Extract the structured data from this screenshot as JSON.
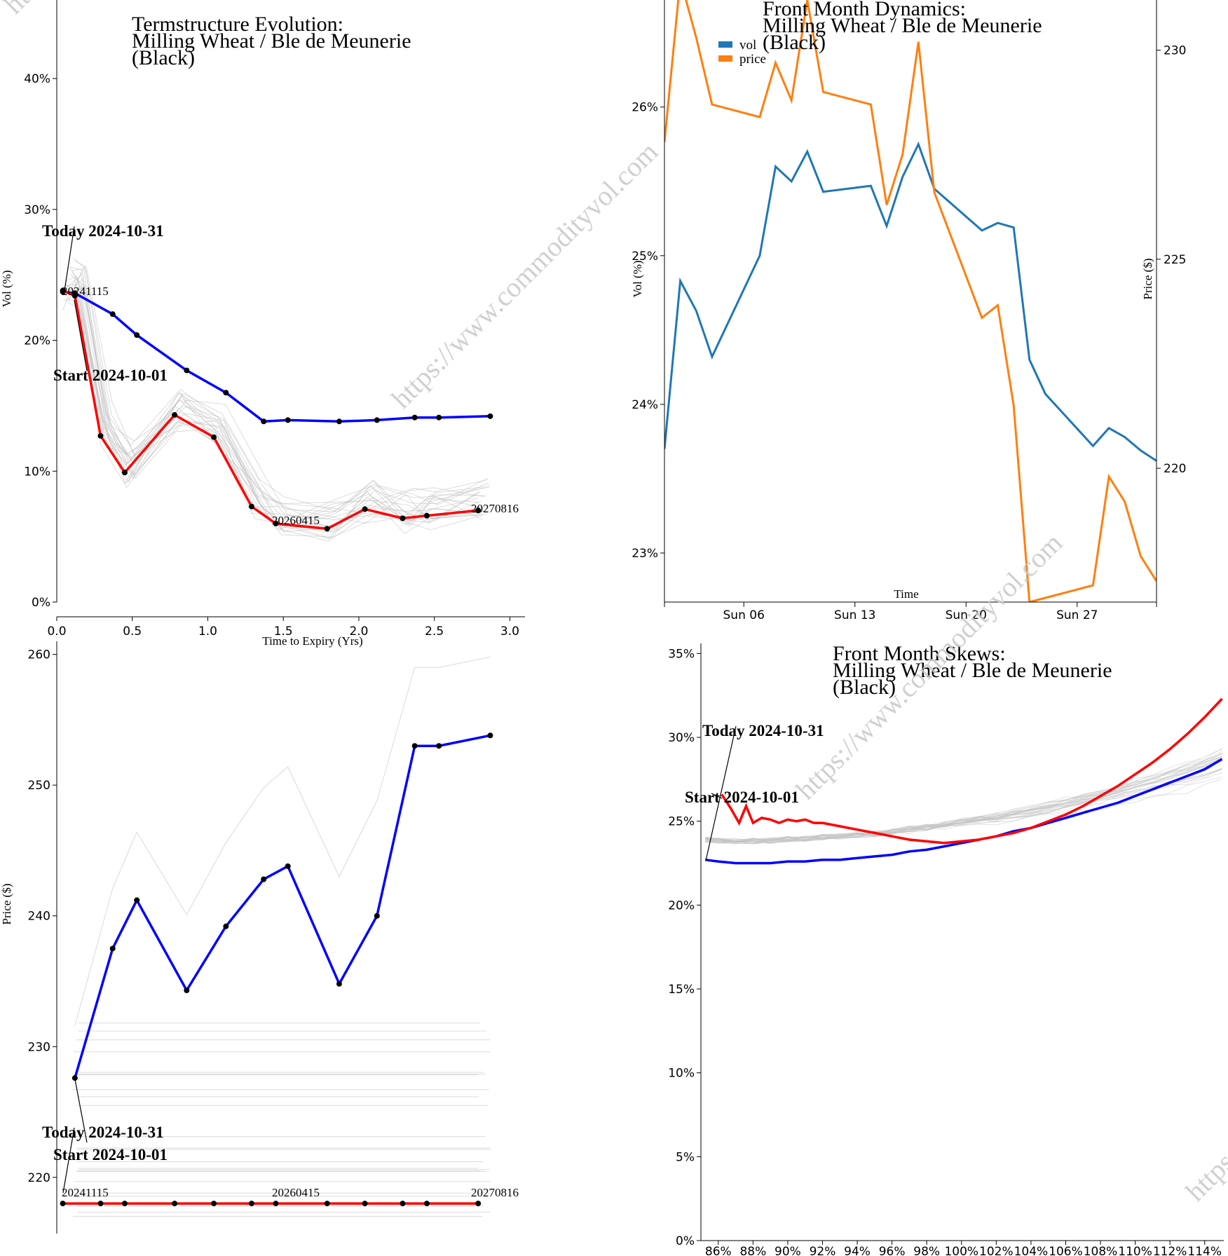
{
  "watermark": "https://www.commodityvol.com",
  "colors": {
    "today": "#0000ff",
    "start": "#ff0000",
    "history": "#c0c0c0",
    "vol": "#1f77b4",
    "price": "#ff7f0e"
  },
  "chart_data": [
    {
      "id": "term_vol",
      "type": "line",
      "title": [
        "Termstructure Evolution:",
        "Milling Wheat / Ble de Meunerie",
        "(Black)"
      ],
      "xlabel": "Time to Expiry (Yrs)",
      "ylabel": "Vol (%)",
      "xlim": [
        0,
        3.1
      ],
      "ylim": [
        0,
        46
      ],
      "xticks": [
        0,
        0.5,
        1,
        1.5,
        2,
        2.5,
        3
      ],
      "xtick_labels": [
        "0.0",
        "0.5",
        "1.0",
        "1.5",
        "2.0",
        "2.5",
        "3.0"
      ],
      "yticks": [
        0,
        10,
        20,
        30,
        40
      ],
      "ytick_labels": [
        "0%",
        "10%",
        "20%",
        "30%",
        "40%"
      ],
      "annotations": [
        "Today 2024-10-31",
        "Start 2024-10-01"
      ],
      "expiry_labels": [
        {
          "text": "20241115",
          "x": 0.04,
          "y": 23.8
        },
        {
          "text": "20260415",
          "x": 1.47,
          "y": 6.0
        },
        {
          "text": "20270816",
          "x": 2.8,
          "y": 7.0
        }
      ],
      "series": [
        {
          "name": "today",
          "x": [
            0.04,
            0.12,
            0.37,
            0.53,
            0.86,
            1.12,
            1.37,
            1.53,
            1.87,
            2.12,
            2.37,
            2.53,
            2.87
          ],
          "y": [
            23.7,
            23.6,
            22.0,
            20.4,
            17.7,
            16.0,
            13.8,
            13.9,
            13.8,
            13.9,
            14.1,
            14.1,
            14.2
          ]
        },
        {
          "name": "start",
          "x": [
            0.04,
            0.12,
            0.29,
            0.45,
            0.78,
            1.04,
            1.29,
            1.45,
            1.79,
            2.04,
            2.29,
            2.45,
            2.79
          ],
          "y": [
            23.8,
            23.4,
            12.7,
            9.9,
            14.3,
            12.6,
            7.3,
            6.0,
            5.6,
            7.1,
            6.4,
            6.6,
            7.0
          ]
        }
      ]
    },
    {
      "id": "front_dynamics",
      "type": "line",
      "title": [
        "Front Month Dynamics:",
        "Milling Wheat / Ble de Meunerie",
        "(Black)"
      ],
      "xlabel": "Time",
      "ylabel": "Vol (%)",
      "ylabel_right": "Price ($)",
      "legend": [
        "vol",
        "price"
      ],
      "legend_position": "top-left",
      "xlim": [
        1,
        32
      ],
      "xticks": [
        6,
        13,
        20,
        27
      ],
      "xtick_labels": [
        "Sun 06",
        "Sun 13",
        "Sun 20",
        "Sun 27"
      ],
      "ylim": [
        22.67,
        26.72
      ],
      "yticks": [
        23,
        24,
        25,
        26
      ],
      "ytick_labels": [
        "23%",
        "24%",
        "25%",
        "26%"
      ],
      "ylim_right": [
        216.8,
        231.2
      ],
      "yticks_right": [
        220,
        225,
        230
      ],
      "ytick_labels_right": [
        "220",
        "225",
        "230"
      ],
      "series": [
        {
          "name": "vol",
          "x": [
            1,
            2,
            3,
            4,
            7,
            8,
            9,
            10,
            11,
            14,
            15,
            16,
            17,
            18,
            21,
            22,
            23,
            24,
            25,
            28,
            29,
            30,
            31,
            32
          ],
          "y": [
            23.7,
            24.83,
            24.63,
            24.32,
            25.0,
            25.6,
            25.5,
            25.7,
            25.43,
            25.47,
            25.2,
            25.53,
            25.75,
            25.45,
            25.17,
            25.22,
            25.19,
            24.3,
            24.07,
            23.72,
            23.84,
            23.78,
            23.69,
            23.62
          ]
        },
        {
          "name": "price",
          "x": [
            1,
            2,
            3,
            4,
            7,
            8,
            9,
            10,
            11,
            14,
            15,
            16,
            17,
            18,
            21,
            22,
            23,
            24,
            25,
            28,
            29,
            30,
            31,
            32
          ],
          "y": [
            227.8,
            231.7,
            230.3,
            228.7,
            228.4,
            229.7,
            228.8,
            231.2,
            229.0,
            228.7,
            226.3,
            227.5,
            230.2,
            226.6,
            223.6,
            223.9,
            221.5,
            216.8,
            216.9,
            217.2,
            219.8,
            219.2,
            217.9,
            217.3
          ]
        }
      ]
    },
    {
      "id": "term_price",
      "type": "line",
      "ylabel": "Price ($)",
      "xlim": [
        0,
        3.1
      ],
      "ylim": [
        215.7,
        261.0
      ],
      "yticks": [
        220,
        230,
        240,
        250,
        260
      ],
      "ytick_labels": [
        "220",
        "230",
        "240",
        "250",
        "260"
      ],
      "annotations": [
        "Today 2024-10-31",
        "Start 2024-10-01"
      ],
      "expiry_labels": [
        {
          "text": "20241115",
          "x": 0.04,
          "y": 218.0
        },
        {
          "text": "20260415",
          "x": 1.45,
          "y": 218.0
        },
        {
          "text": "20270816",
          "x": 2.79,
          "y": 218.0
        }
      ],
      "series": [
        {
          "name": "today",
          "x": [
            0.12,
            0.37,
            0.53,
            0.86,
            1.12,
            1.37,
            1.53,
            1.87,
            2.12,
            2.37,
            2.53,
            2.87
          ],
          "y": [
            227.6,
            237.5,
            241.2,
            234.3,
            239.2,
            242.8,
            243.8,
            234.8,
            240.0,
            253.0,
            253.0,
            253.8
          ]
        },
        {
          "name": "start",
          "x": [
            0.04,
            0.29,
            0.45,
            0.78,
            1.04,
            1.29,
            1.45,
            1.79,
            2.04,
            2.29,
            2.45,
            2.79
          ],
          "y": [
            218.0,
            218.0,
            218.0,
            218.0,
            218.0,
            218.0,
            218.0,
            218.0,
            218.0,
            218.0,
            218.0,
            218.0
          ]
        }
      ]
    },
    {
      "id": "front_skews",
      "type": "line",
      "title": [
        "Front Month Skews:",
        "Milling Wheat / Ble de Meunerie",
        "(Black)"
      ],
      "xlim": [
        85,
        115.1
      ],
      "xticks": [
        86,
        88,
        90,
        92,
        94,
        96,
        98,
        100,
        102,
        104,
        106,
        108,
        110,
        112,
        114
      ],
      "xtick_labels": [
        "86%",
        "88%",
        "90%",
        "92%",
        "94%",
        "96%",
        "98%",
        "100%",
        "102%",
        "104%",
        "106%",
        "108%",
        "110%",
        "112%",
        "114%"
      ],
      "ylim": [
        0,
        35.6
      ],
      "yticks": [
        0,
        5,
        10,
        15,
        20,
        25,
        30,
        35
      ],
      "ytick_labels": [
        "0%",
        "5%",
        "10%",
        "15%",
        "20%",
        "25%",
        "30%",
        "35%"
      ],
      "annotations": [
        "Today 2024-10-31",
        "Start 2024-10-01"
      ],
      "series": [
        {
          "name": "today",
          "x": [
            85.25,
            86,
            87,
            88,
            89,
            90,
            91,
            92,
            93,
            94,
            95,
            96,
            97,
            98,
            99,
            100,
            101,
            102,
            103,
            104,
            105,
            106,
            107,
            108,
            109,
            110,
            111,
            112,
            113,
            114,
            115
          ],
          "y": [
            22.7,
            22.6,
            22.5,
            22.5,
            22.5,
            22.6,
            22.6,
            22.7,
            22.7,
            22.8,
            22.9,
            23.0,
            23.2,
            23.3,
            23.5,
            23.7,
            23.9,
            24.1,
            24.4,
            24.6,
            24.9,
            25.2,
            25.5,
            25.8,
            26.1,
            26.5,
            26.9,
            27.3,
            27.7,
            28.1,
            28.7
          ]
        },
        {
          "name": "start",
          "x": [
            86.2,
            86.7,
            87.2,
            87.6,
            88.0,
            88.5,
            89.0,
            89.5,
            90,
            90.5,
            91,
            91.5,
            92,
            93,
            94,
            95,
            96,
            97,
            98,
            99,
            100,
            101,
            102,
            103,
            104,
            105,
            106,
            107,
            108,
            109,
            110,
            111,
            112,
            113,
            114,
            115
          ],
          "y": [
            26.6,
            25.8,
            24.9,
            25.9,
            24.9,
            25.2,
            25.1,
            24.9,
            25.1,
            25.0,
            25.1,
            24.9,
            24.9,
            24.7,
            24.5,
            24.3,
            24.1,
            23.9,
            23.8,
            23.7,
            23.8,
            23.9,
            24.1,
            24.3,
            24.6,
            25.0,
            25.4,
            25.9,
            26.5,
            27.1,
            27.8,
            28.5,
            29.3,
            30.2,
            31.2,
            32.3
          ]
        }
      ]
    }
  ]
}
